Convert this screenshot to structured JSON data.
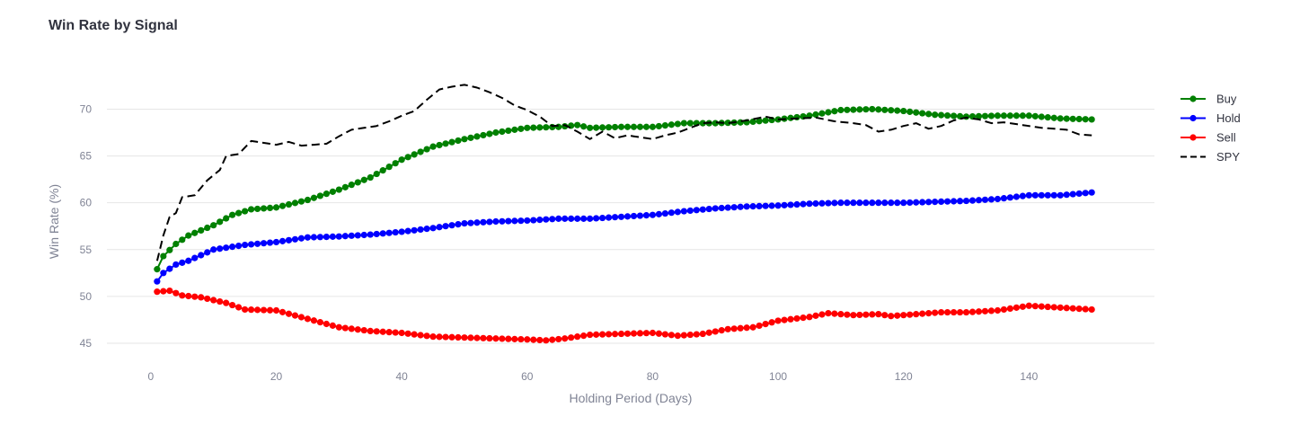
{
  "chart_data": {
    "type": "line",
    "title": "Win Rate by Signal",
    "xlabel": "Holding Period (Days)",
    "ylabel": "Win Rate (%)",
    "xlim": [
      -7,
      160
    ],
    "ylim": [
      42.5,
      73.5
    ],
    "xticks": [
      0,
      20,
      40,
      60,
      80,
      100,
      120,
      140
    ],
    "yticks": [
      45,
      50,
      55,
      60,
      65,
      70
    ],
    "grid": true,
    "legend_position": "top-right",
    "series": [
      {
        "name": "Buy",
        "color": "#008000",
        "mode": "lines+markers",
        "dash": "solid",
        "anchors": [
          [
            1,
            52.9
          ],
          [
            2,
            54.3
          ],
          [
            4,
            55.6
          ],
          [
            6,
            56.5
          ],
          [
            10,
            57.6
          ],
          [
            13,
            58.7
          ],
          [
            16,
            59.3
          ],
          [
            20,
            59.5
          ],
          [
            25,
            60.3
          ],
          [
            30,
            61.4
          ],
          [
            35,
            62.7
          ],
          [
            40,
            64.6
          ],
          [
            45,
            66.0
          ],
          [
            50,
            66.8
          ],
          [
            55,
            67.5
          ],
          [
            60,
            68.0
          ],
          [
            65,
            68.1
          ],
          [
            68,
            68.3
          ],
          [
            70,
            68.0
          ],
          [
            75,
            68.1
          ],
          [
            80,
            68.1
          ],
          [
            85,
            68.5
          ],
          [
            90,
            68.5
          ],
          [
            95,
            68.6
          ],
          [
            100,
            68.9
          ],
          [
            105,
            69.3
          ],
          [
            110,
            69.9
          ],
          [
            115,
            70.0
          ],
          [
            120,
            69.8
          ],
          [
            125,
            69.4
          ],
          [
            130,
            69.2
          ],
          [
            135,
            69.3
          ],
          [
            140,
            69.3
          ],
          [
            145,
            69.0
          ],
          [
            150,
            68.9
          ]
        ]
      },
      {
        "name": "Hold",
        "color": "#0000ff",
        "mode": "lines+markers",
        "dash": "solid",
        "anchors": [
          [
            1,
            51.6
          ],
          [
            2,
            52.5
          ],
          [
            4,
            53.4
          ],
          [
            6,
            53.8
          ],
          [
            10,
            55.0
          ],
          [
            15,
            55.5
          ],
          [
            20,
            55.8
          ],
          [
            25,
            56.3
          ],
          [
            30,
            56.4
          ],
          [
            35,
            56.6
          ],
          [
            40,
            56.9
          ],
          [
            45,
            57.3
          ],
          [
            50,
            57.8
          ],
          [
            55,
            58.0
          ],
          [
            60,
            58.1
          ],
          [
            65,
            58.3
          ],
          [
            70,
            58.3
          ],
          [
            75,
            58.5
          ],
          [
            80,
            58.7
          ],
          [
            85,
            59.1
          ],
          [
            90,
            59.4
          ],
          [
            95,
            59.6
          ],
          [
            100,
            59.7
          ],
          [
            105,
            59.9
          ],
          [
            110,
            60.0
          ],
          [
            115,
            60.0
          ],
          [
            120,
            60.0
          ],
          [
            125,
            60.1
          ],
          [
            130,
            60.2
          ],
          [
            135,
            60.4
          ],
          [
            140,
            60.8
          ],
          [
            145,
            60.8
          ],
          [
            150,
            61.1
          ]
        ]
      },
      {
        "name": "Sell",
        "color": "#ff0000",
        "mode": "lines+markers",
        "dash": "solid",
        "anchors": [
          [
            1,
            50.5
          ],
          [
            3,
            50.6
          ],
          [
            5,
            50.1
          ],
          [
            8,
            49.9
          ],
          [
            12,
            49.3
          ],
          [
            15,
            48.6
          ],
          [
            20,
            48.5
          ],
          [
            25,
            47.6
          ],
          [
            30,
            46.7
          ],
          [
            35,
            46.3
          ],
          [
            40,
            46.1
          ],
          [
            45,
            45.7
          ],
          [
            50,
            45.6
          ],
          [
            55,
            45.5
          ],
          [
            60,
            45.4
          ],
          [
            63,
            45.3
          ],
          [
            66,
            45.5
          ],
          [
            70,
            45.9
          ],
          [
            75,
            46.0
          ],
          [
            80,
            46.1
          ],
          [
            84,
            45.8
          ],
          [
            88,
            46.0
          ],
          [
            92,
            46.5
          ],
          [
            96,
            46.7
          ],
          [
            100,
            47.4
          ],
          [
            105,
            47.8
          ],
          [
            108,
            48.2
          ],
          [
            112,
            48.0
          ],
          [
            116,
            48.1
          ],
          [
            118,
            47.9
          ],
          [
            122,
            48.1
          ],
          [
            126,
            48.3
          ],
          [
            130,
            48.3
          ],
          [
            135,
            48.5
          ],
          [
            140,
            49.0
          ],
          [
            145,
            48.8
          ],
          [
            150,
            48.6
          ]
        ]
      },
      {
        "name": "SPY",
        "color": "#000000",
        "mode": "lines",
        "dash": "dash",
        "anchors": [
          [
            1,
            53.8
          ],
          [
            2,
            56.5
          ],
          [
            3,
            58.5
          ],
          [
            4,
            58.9
          ],
          [
            5,
            60.6
          ],
          [
            7,
            60.8
          ],
          [
            9,
            62.4
          ],
          [
            11,
            63.5
          ],
          [
            12,
            65.0
          ],
          [
            14,
            65.2
          ],
          [
            16,
            66.6
          ],
          [
            18,
            66.4
          ],
          [
            20,
            66.2
          ],
          [
            22,
            66.5
          ],
          [
            24,
            66.1
          ],
          [
            26,
            66.2
          ],
          [
            28,
            66.3
          ],
          [
            30,
            67.1
          ],
          [
            32,
            67.8
          ],
          [
            34,
            68.0
          ],
          [
            36,
            68.2
          ],
          [
            38,
            68.7
          ],
          [
            40,
            69.3
          ],
          [
            42,
            69.8
          ],
          [
            44,
            71.0
          ],
          [
            46,
            72.1
          ],
          [
            48,
            72.4
          ],
          [
            50,
            72.6
          ],
          [
            52,
            72.3
          ],
          [
            54,
            71.8
          ],
          [
            56,
            71.2
          ],
          [
            58,
            70.4
          ],
          [
            60,
            69.9
          ],
          [
            62,
            69.2
          ],
          [
            64,
            68.2
          ],
          [
            66,
            68.3
          ],
          [
            68,
            67.6
          ],
          [
            70,
            66.8
          ],
          [
            72,
            67.6
          ],
          [
            74,
            66.9
          ],
          [
            76,
            67.2
          ],
          [
            78,
            67.0
          ],
          [
            80,
            66.8
          ],
          [
            82,
            67.2
          ],
          [
            84,
            67.5
          ],
          [
            86,
            68.0
          ],
          [
            88,
            68.5
          ],
          [
            90,
            68.6
          ],
          [
            92,
            68.5
          ],
          [
            95,
            68.8
          ],
          [
            98,
            69.2
          ],
          [
            100,
            68.9
          ],
          [
            103,
            69.0
          ],
          [
            106,
            69.1
          ],
          [
            109,
            68.7
          ],
          [
            112,
            68.5
          ],
          [
            114,
            68.3
          ],
          [
            116,
            67.6
          ],
          [
            118,
            67.8
          ],
          [
            120,
            68.2
          ],
          [
            122,
            68.5
          ],
          [
            124,
            67.9
          ],
          [
            126,
            68.2
          ],
          [
            128,
            68.8
          ],
          [
            130,
            69.1
          ],
          [
            132,
            68.9
          ],
          [
            134,
            68.5
          ],
          [
            136,
            68.6
          ],
          [
            138,
            68.4
          ],
          [
            140,
            68.2
          ],
          [
            142,
            68.0
          ],
          [
            144,
            67.9
          ],
          [
            146,
            67.8
          ],
          [
            148,
            67.3
          ],
          [
            150,
            67.2
          ]
        ]
      }
    ]
  }
}
